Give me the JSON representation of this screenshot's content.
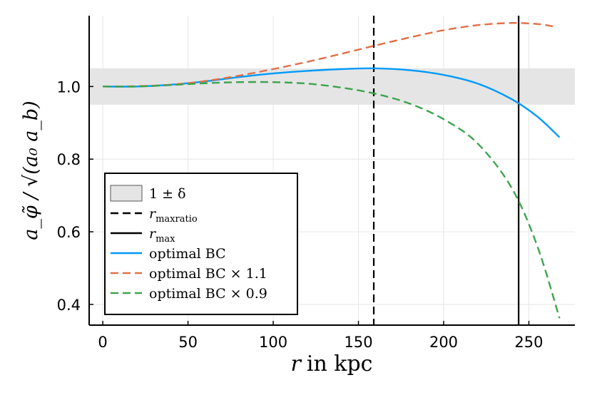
{
  "chart_data": {
    "type": "line",
    "xlabel_var": "r",
    "xlabel_rest": "in kpc",
    "ylabel": "a_φ̃ / √(a₀ a_b)",
    "xlim": [
      -8,
      277
    ],
    "ylim": [
      0.343,
      1.195
    ],
    "xticks": [
      0,
      50,
      100,
      150,
      200,
      250
    ],
    "yticks": [
      0.4,
      0.6,
      0.8,
      1.0
    ],
    "ytick_labels": [
      "0.4",
      "0.6",
      "0.8",
      "1.0"
    ],
    "band": {
      "name": "1 ± δ",
      "y_low": 0.95,
      "y_high": 1.05,
      "color": "#e5e5e5"
    },
    "vlines": [
      {
        "name": "r_maxratio",
        "x": 159,
        "style": "dashed",
        "color": "#000000"
      },
      {
        "name": "r_max",
        "x": 244,
        "style": "solid",
        "color": "#000000"
      }
    ],
    "series": [
      {
        "name": "optimal BC",
        "color": "#009AFA",
        "style": "solid",
        "x": [
          0,
          20,
          40,
          60,
          80,
          100,
          120,
          140,
          159,
          180,
          200,
          220,
          240,
          255,
          268
        ],
        "y": [
          1.0,
          1.0,
          1.005,
          1.014,
          1.026,
          1.036,
          1.043,
          1.048,
          1.05,
          1.045,
          1.032,
          1.008,
          0.965,
          0.917,
          0.86
        ]
      },
      {
        "name": "optimal BC × 1.1",
        "color": "#E26F46",
        "style": "dashed",
        "x": [
          0,
          20,
          40,
          60,
          80,
          100,
          120,
          140,
          160,
          180,
          200,
          220,
          240,
          255,
          265
        ],
        "y": [
          1.0,
          1.001,
          1.005,
          1.015,
          1.03,
          1.048,
          1.068,
          1.09,
          1.113,
          1.135,
          1.155,
          1.169,
          1.175,
          1.172,
          1.165
        ]
      },
      {
        "name": "optimal BC × 0.9",
        "color": "#3EA44E",
        "style": "dashed",
        "x": [
          0,
          20,
          40,
          60,
          80,
          100,
          120,
          140,
          160,
          180,
          200,
          220,
          240,
          255,
          268
        ],
        "y": [
          1.0,
          1.0,
          1.004,
          1.009,
          1.012,
          1.012,
          1.008,
          0.997,
          0.98,
          0.953,
          0.91,
          0.843,
          0.72,
          0.56,
          0.362
        ]
      }
    ],
    "legend": {
      "position": "bottom-left",
      "entries": [
        {
          "kind": "band",
          "text": "1 ± δ"
        },
        {
          "kind": "dashed-black",
          "text": "r",
          "sub": "maxratio"
        },
        {
          "kind": "solid-black",
          "text": "r",
          "sub": "max"
        },
        {
          "kind": "line",
          "text": "optimal BC",
          "series": 0
        },
        {
          "kind": "line",
          "text": "optimal BC × 1.1",
          "series": 1
        },
        {
          "kind": "line",
          "text": "optimal BC × 0.9",
          "series": 2
        }
      ]
    },
    "grid": true
  }
}
